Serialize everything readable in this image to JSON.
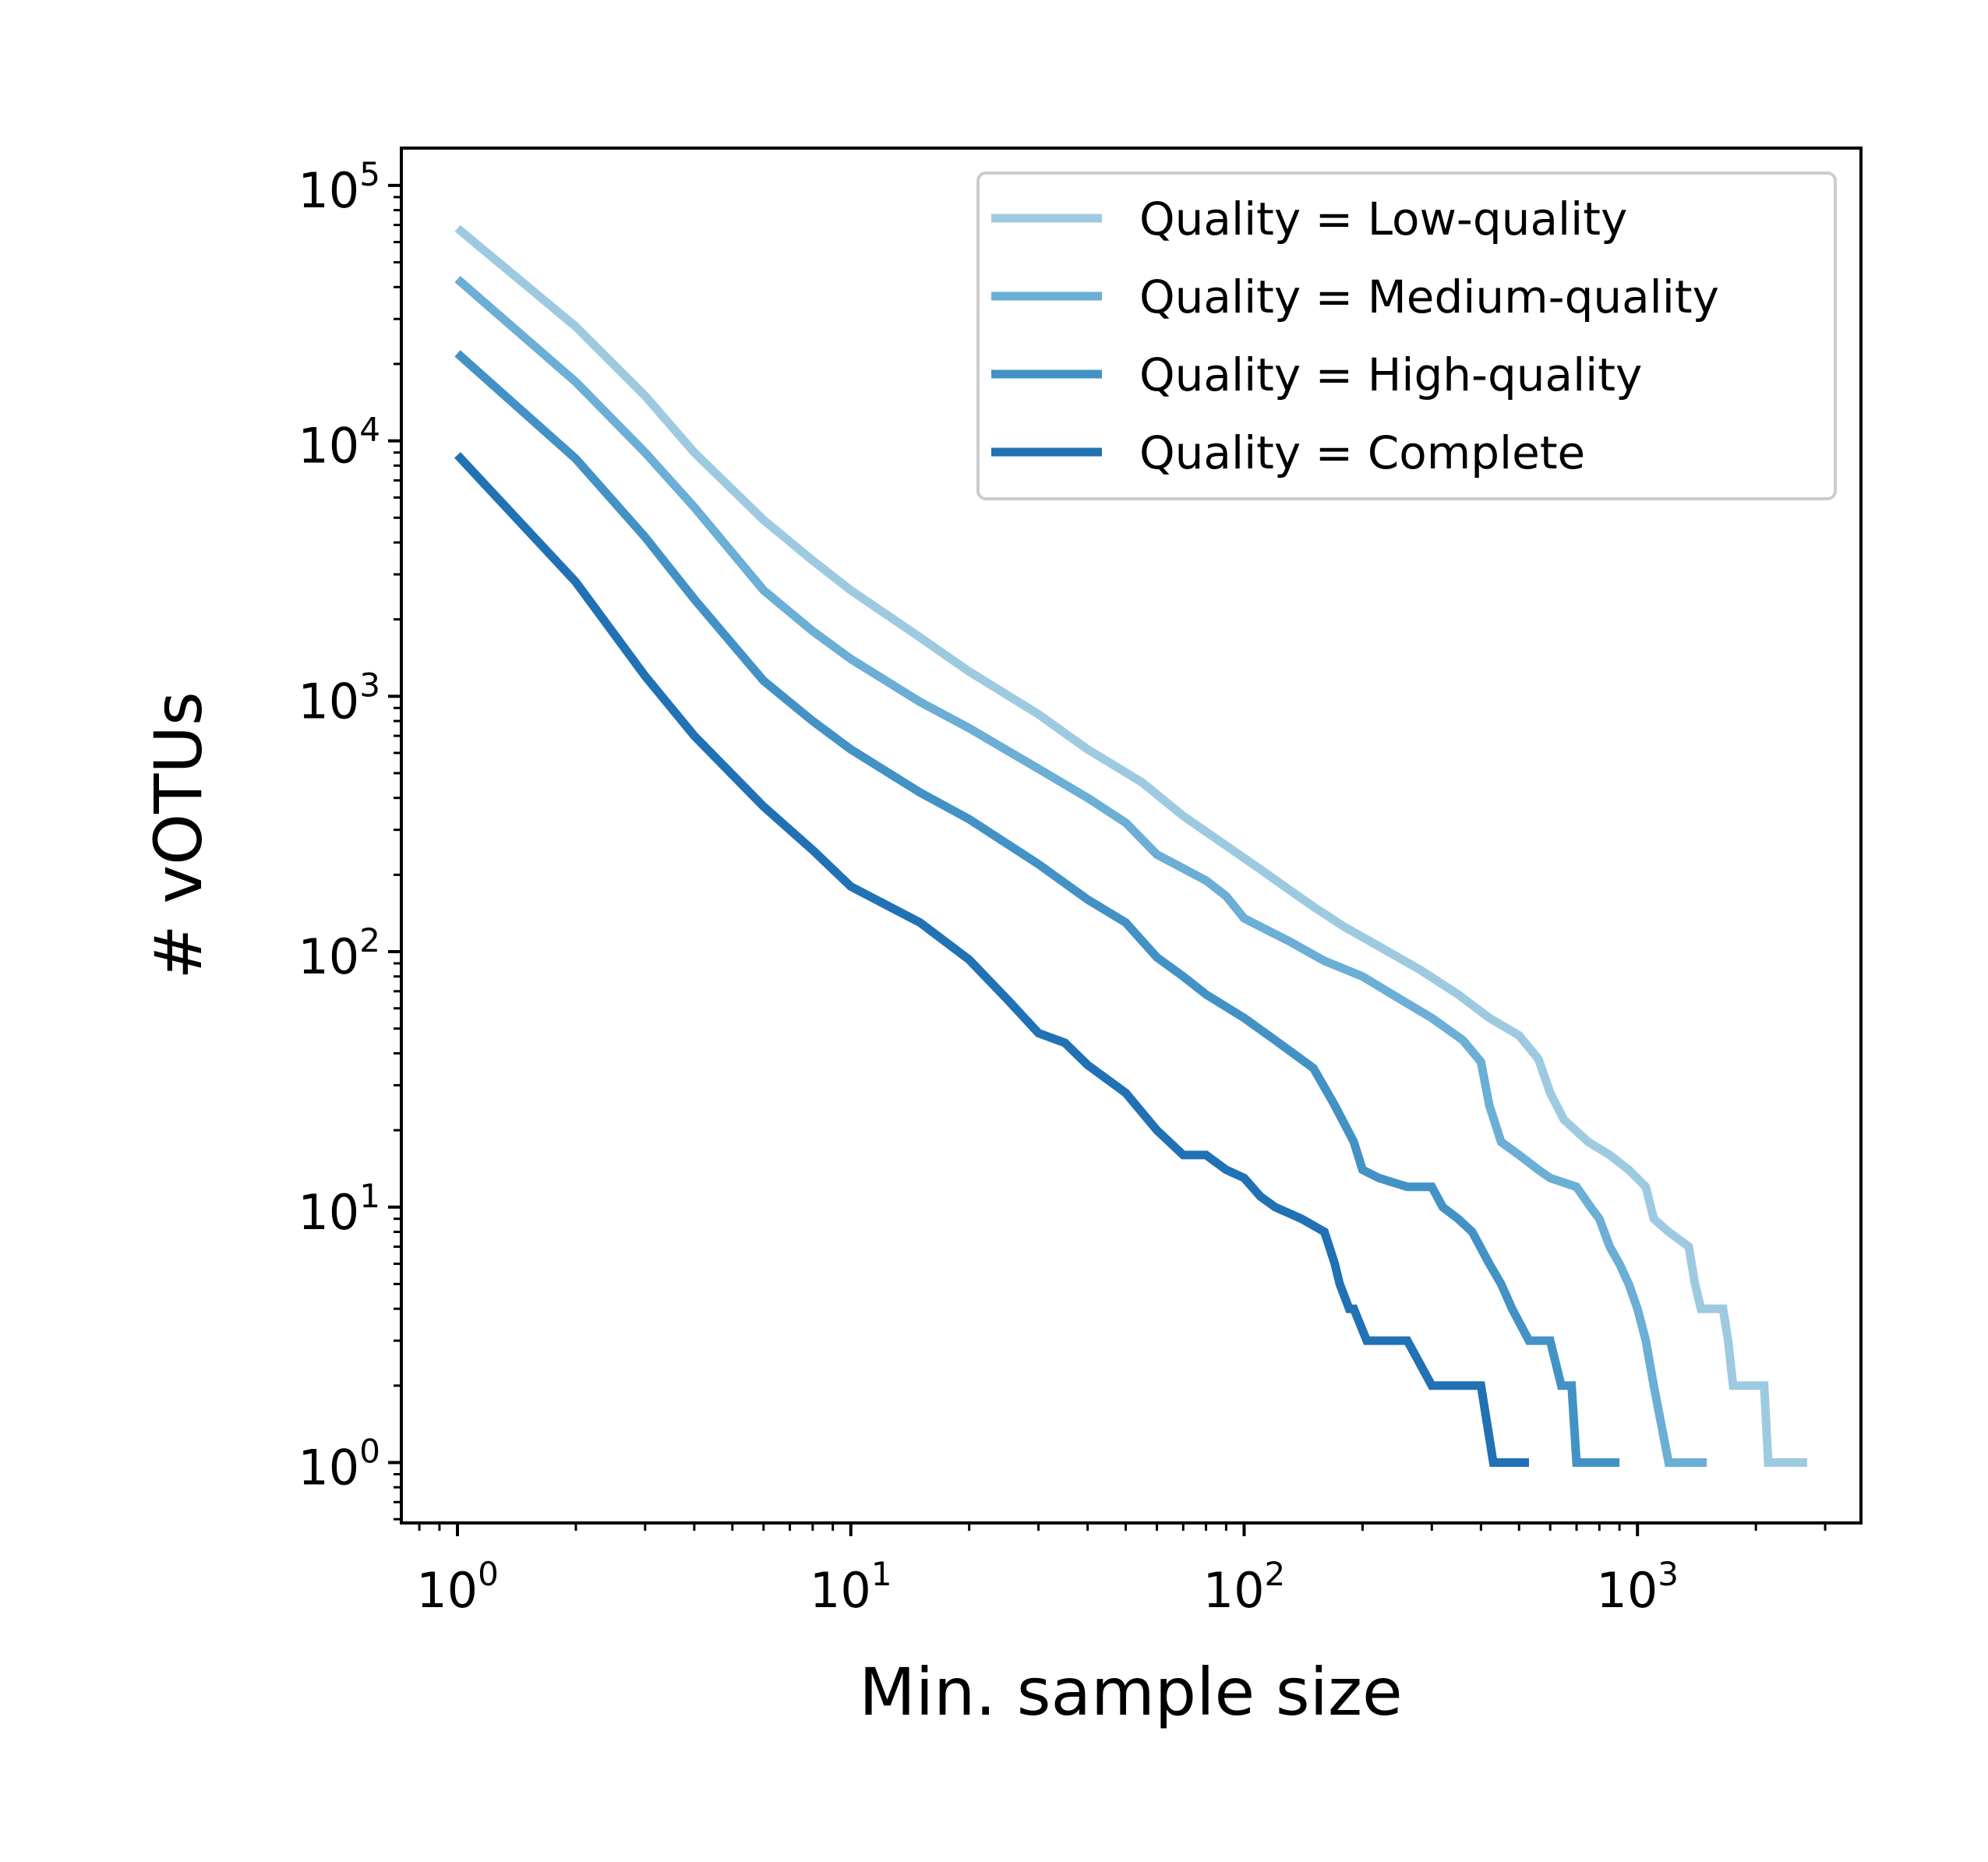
{
  "chart_data": {
    "type": "line",
    "title": "",
    "xlabel": "Min. sample size",
    "ylabel": "# vOTUs",
    "xscale": "log",
    "yscale": "log",
    "xlim": [
      0.72,
      3700
    ],
    "ylim": [
      0.58,
      140000
    ],
    "xticks": [
      {
        "base": "10",
        "exp": "0",
        "value": 1
      },
      {
        "base": "10",
        "exp": "1",
        "value": 10
      },
      {
        "base": "10",
        "exp": "2",
        "value": 100
      },
      {
        "base": "10",
        "exp": "3",
        "value": 1000
      }
    ],
    "yticks": [
      {
        "base": "10",
        "exp": "0",
        "value": 1
      },
      {
        "base": "10",
        "exp": "1",
        "value": 10
      },
      {
        "base": "10",
        "exp": "2",
        "value": 100
      },
      {
        "base": "10",
        "exp": "3",
        "value": 1000
      },
      {
        "base": "10",
        "exp": "4",
        "value": 10000
      },
      {
        "base": "10",
        "exp": "5",
        "value": 100000
      }
    ],
    "grid": false,
    "legend_position": "top-right",
    "series": [
      {
        "name": "Quality = Low-quality",
        "color": "#9ecae1",
        "points": [
          [
            1,
            68000
          ],
          [
            2,
            28000
          ],
          [
            3,
            15000
          ],
          [
            4,
            9000
          ],
          [
            6,
            4900
          ],
          [
            8,
            3400
          ],
          [
            10,
            2600
          ],
          [
            15,
            1700
          ],
          [
            20,
            1250
          ],
          [
            30,
            850
          ],
          [
            40,
            620
          ],
          [
            55,
            460
          ],
          [
            70,
            340
          ],
          [
            90,
            260
          ],
          [
            110,
            210
          ],
          [
            130,
            175
          ],
          [
            150,
            150
          ],
          [
            180,
            125
          ],
          [
            220,
            105
          ],
          [
            280,
            85
          ],
          [
            350,
            68
          ],
          [
            420,
            55
          ],
          [
            500,
            47
          ],
          [
            560,
            38
          ],
          [
            600,
            28
          ],
          [
            650,
            22
          ],
          [
            750,
            18
          ],
          [
            850,
            16
          ],
          [
            950,
            14
          ],
          [
            1050,
            12
          ],
          [
            1100,
            9
          ],
          [
            1200,
            8
          ],
          [
            1350,
            7
          ],
          [
            1400,
            5
          ],
          [
            1450,
            4
          ],
          [
            1650,
            4
          ],
          [
            1700,
            3
          ],
          [
            1750,
            2
          ],
          [
            2100,
            2
          ],
          [
            2150,
            1
          ],
          [
            2700,
            1
          ]
        ]
      },
      {
        "name": "Quality = Medium-quality",
        "color": "#6baed6",
        "points": [
          [
            1,
            43000
          ],
          [
            2,
            17000
          ],
          [
            3,
            9000
          ],
          [
            4,
            5500
          ],
          [
            6,
            2600
          ],
          [
            8,
            1800
          ],
          [
            10,
            1400
          ],
          [
            15,
            950
          ],
          [
            20,
            750
          ],
          [
            30,
            520
          ],
          [
            40,
            400
          ],
          [
            50,
            320
          ],
          [
            60,
            240
          ],
          [
            80,
            190
          ],
          [
            90,
            165
          ],
          [
            100,
            135
          ],
          [
            130,
            110
          ],
          [
            160,
            92
          ],
          [
            200,
            80
          ],
          [
            250,
            65
          ],
          [
            300,
            55
          ],
          [
            360,
            45
          ],
          [
            400,
            37
          ],
          [
            420,
            25
          ],
          [
            450,
            18
          ],
          [
            500,
            16
          ],
          [
            560,
            14
          ],
          [
            600,
            13
          ],
          [
            700,
            12
          ],
          [
            760,
            10
          ],
          [
            800,
            9
          ],
          [
            850,
            7
          ],
          [
            900,
            6
          ],
          [
            950,
            5
          ],
          [
            1000,
            4
          ],
          [
            1050,
            3
          ],
          [
            1100,
            2
          ],
          [
            1200,
            1
          ],
          [
            1500,
            1
          ]
        ]
      },
      {
        "name": "Quality = High-quality",
        "color": "#4292c6",
        "points": [
          [
            1,
            22000
          ],
          [
            2,
            8500
          ],
          [
            3,
            4200
          ],
          [
            4,
            2400
          ],
          [
            6,
            1150
          ],
          [
            8,
            800
          ],
          [
            10,
            620
          ],
          [
            15,
            420
          ],
          [
            20,
            330
          ],
          [
            30,
            220
          ],
          [
            40,
            160
          ],
          [
            50,
            130
          ],
          [
            60,
            95
          ],
          [
            70,
            80
          ],
          [
            80,
            68
          ],
          [
            100,
            55
          ],
          [
            120,
            45
          ],
          [
            150,
            35
          ],
          [
            170,
            25
          ],
          [
            190,
            18
          ],
          [
            200,
            14
          ],
          [
            220,
            13
          ],
          [
            260,
            12
          ],
          [
            300,
            12
          ],
          [
            320,
            10
          ],
          [
            350,
            9
          ],
          [
            380,
            8
          ],
          [
            420,
            6
          ],
          [
            450,
            5
          ],
          [
            480,
            4
          ],
          [
            530,
            3
          ],
          [
            600,
            3
          ],
          [
            640,
            2
          ],
          [
            680,
            2
          ],
          [
            700,
            1
          ],
          [
            900,
            1
          ]
        ]
      },
      {
        "name": "Quality = Complete",
        "color": "#2171b5",
        "points": [
          [
            1,
            8800
          ],
          [
            2,
            2800
          ],
          [
            3,
            1200
          ],
          [
            4,
            700
          ],
          [
            6,
            370
          ],
          [
            8,
            250
          ],
          [
            10,
            180
          ],
          [
            15,
            130
          ],
          [
            20,
            93
          ],
          [
            25,
            65
          ],
          [
            30,
            48
          ],
          [
            35,
            44
          ],
          [
            40,
            36
          ],
          [
            50,
            28
          ],
          [
            60,
            20
          ],
          [
            70,
            16
          ],
          [
            80,
            16
          ],
          [
            90,
            14
          ],
          [
            100,
            13
          ],
          [
            110,
            11
          ],
          [
            120,
            10
          ],
          [
            140,
            9
          ],
          [
            160,
            8
          ],
          [
            170,
            6
          ],
          [
            175,
            5
          ],
          [
            185,
            4
          ],
          [
            190,
            4
          ],
          [
            205,
            3
          ],
          [
            260,
            3
          ],
          [
            300,
            2
          ],
          [
            350,
            2
          ],
          [
            400,
            2
          ],
          [
            430,
            1
          ],
          [
            530,
            1
          ]
        ]
      }
    ]
  }
}
